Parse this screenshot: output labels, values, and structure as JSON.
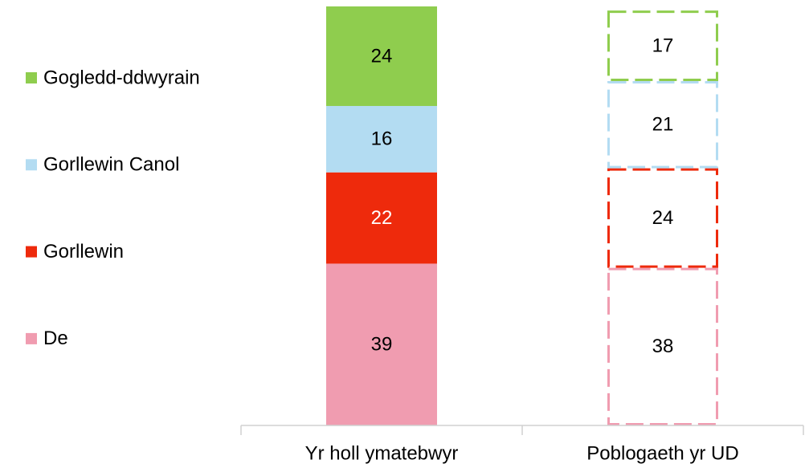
{
  "chart_data": {
    "type": "stacked_bar",
    "categories": [
      "Yr holl ymatebwyr",
      "Poblogaeth yr UD"
    ],
    "bar_styles": [
      "filled",
      "dashed"
    ],
    "series": [
      {
        "name": "De",
        "color": "#f09cb0",
        "label_color": "#000000",
        "values": [
          39,
          38
        ]
      },
      {
        "name": "Gorllewin",
        "color": "#ee2a0c",
        "label_color": "#ffffff",
        "values": [
          22,
          24
        ]
      },
      {
        "name": "Gorllewin Canol",
        "color": "#b3dcf2",
        "label_color": "#000000",
        "values": [
          16,
          21
        ]
      },
      {
        "name": "Gogledd-ddwyrain",
        "color": "#8fcd4e",
        "label_color": "#000000",
        "values": [
          24,
          17
        ]
      }
    ],
    "legend": "left"
  }
}
